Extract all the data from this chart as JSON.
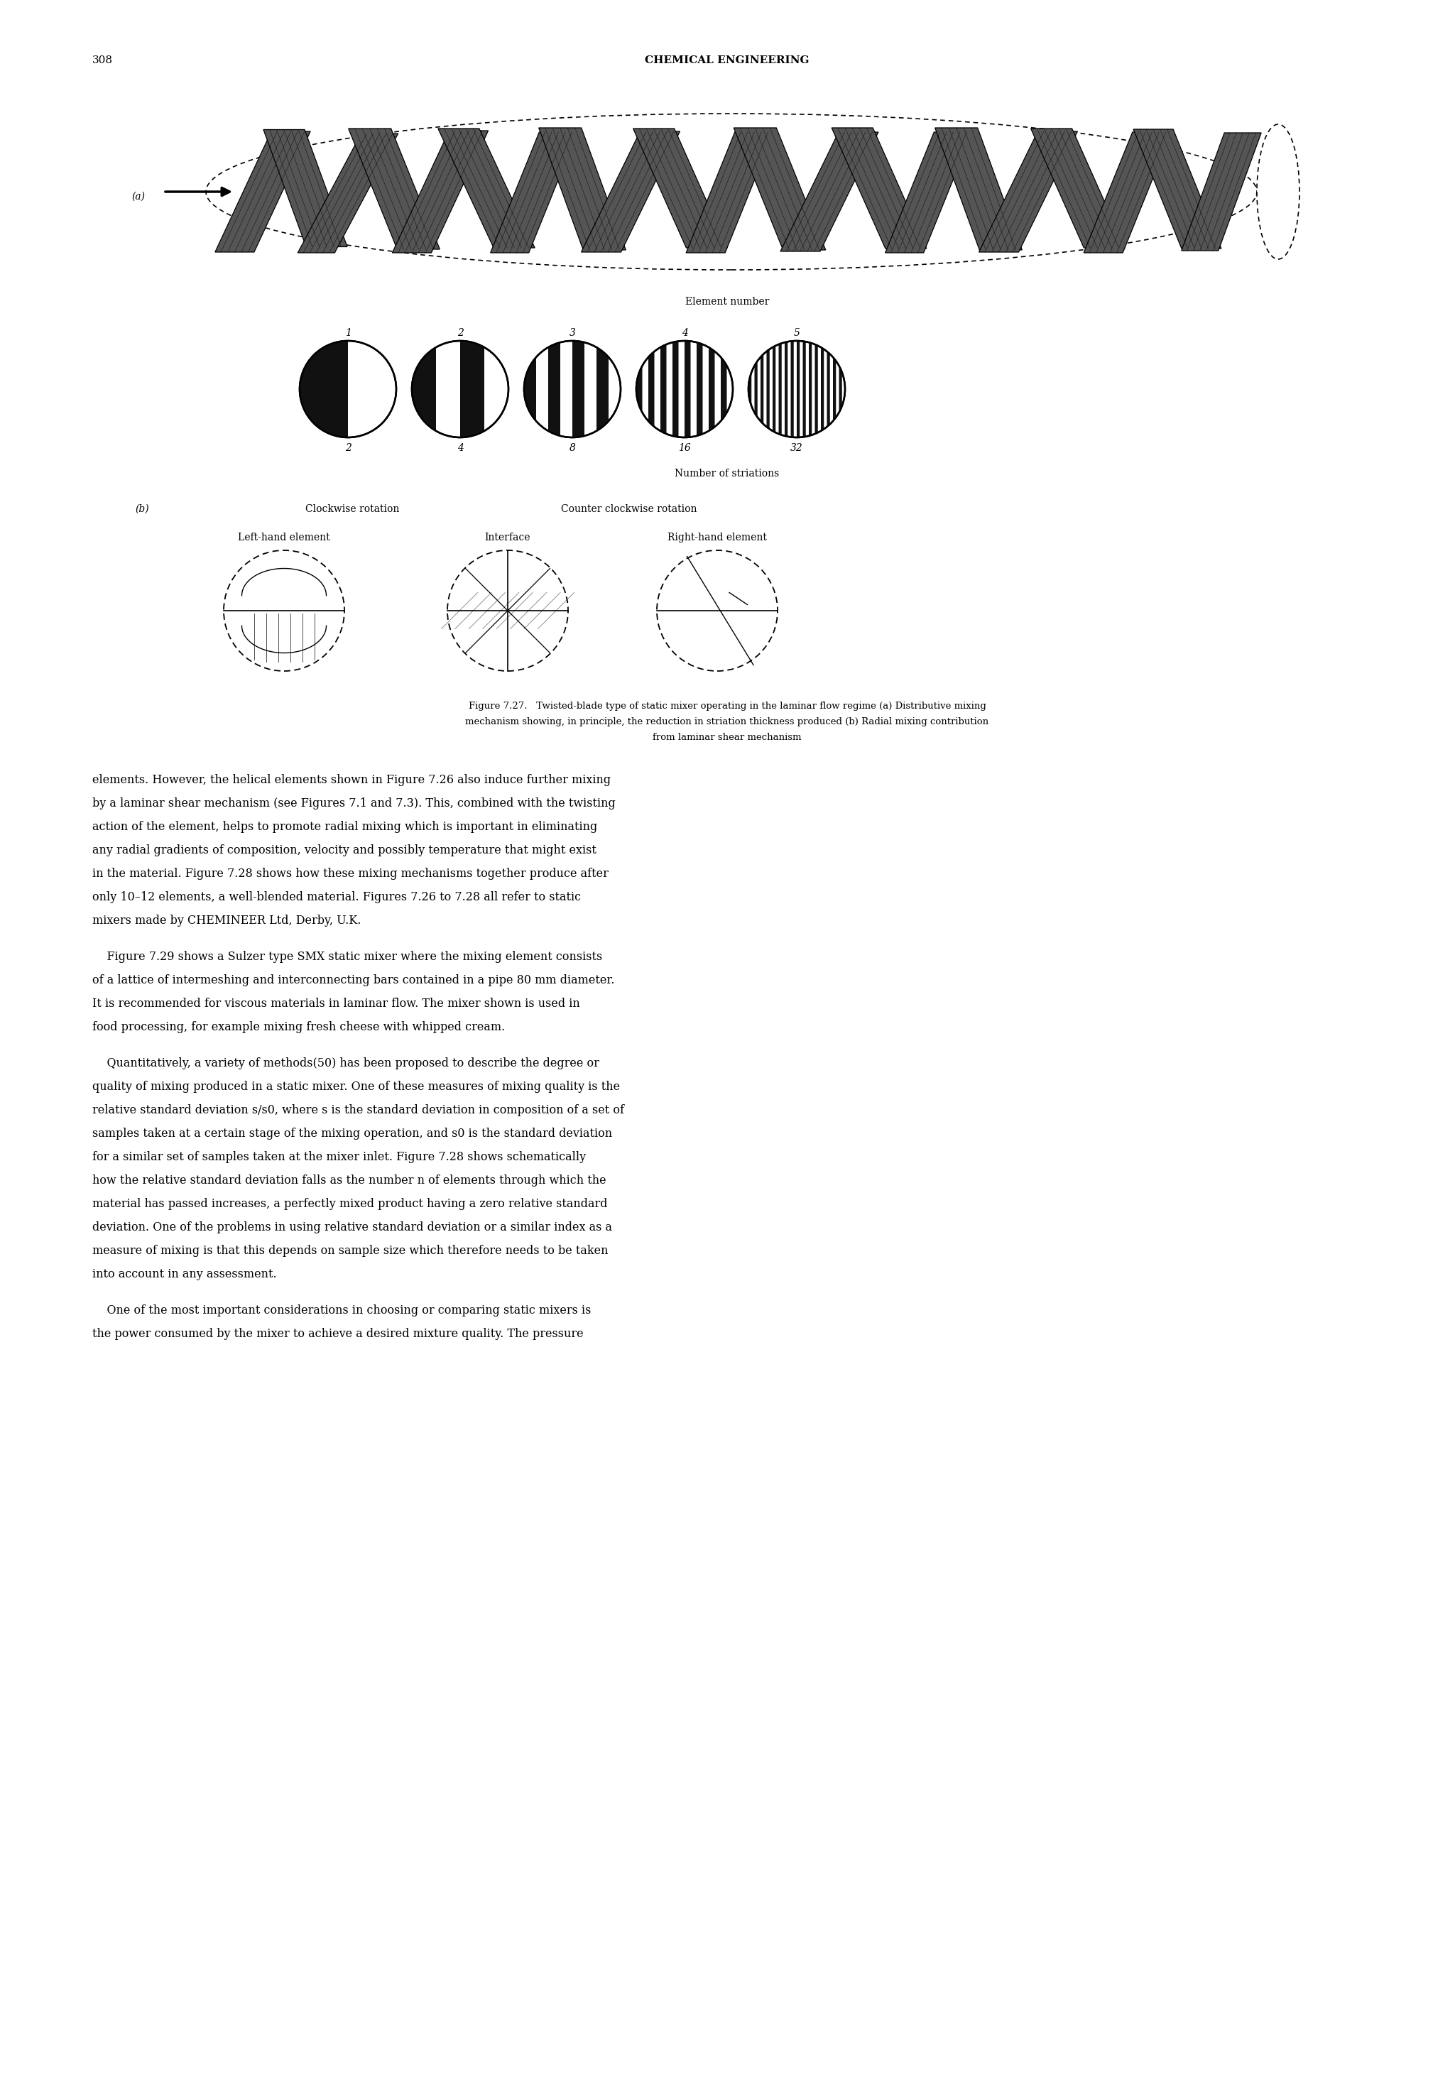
{
  "page_number": "308",
  "header_title": "CHEMICAL ENGINEERING",
  "fig_label_a": "(a)",
  "fig_label_b": "(b)",
  "element_number_label": "Element number",
  "element_numbers": [
    "1",
    "2",
    "3",
    "4",
    "5"
  ],
  "striation_numbers": [
    "2",
    "4",
    "8",
    "16",
    "32"
  ],
  "striation_label": "Number of striations",
  "b_labels_top_cw": "Clockwise rotation",
  "b_labels_top_ccw": "Counter clockwise rotation",
  "b_labels_mid": [
    "Left-hand element",
    "Interface",
    "Right-hand element"
  ],
  "caption_line1": "Figure 7.27.   Twisted-blade type of static mixer operating in the laminar flow regime (a) Distributive mixing",
  "caption_line2": "mechanism showing, in principle, the reduction in striation thickness produced (b) Radial mixing contribution",
  "caption_line3": "from laminar shear mechanism",
  "body_para1": [
    "elements. However, the helical elements shown in Figure 7.26 also induce further mixing",
    "by a laminar shear mechanism (see Figures 7.1 and 7.3). This, combined with the twisting",
    "action of the element, helps to promote radial mixing which is important in eliminating",
    "any radial gradients of composition, velocity and possibly temperature that might exist",
    "in the material. Figure 7.28 shows how these mixing mechanisms together produce after",
    "only 10–12 elements, a well-blended material. Figures 7.26 to 7.28 all refer to static",
    "mixers made by CHEMINEER Ltd, Derby, U.K."
  ],
  "body_para2": [
    "    Figure 7.29 shows a Sulzer type SMX static mixer where the mixing element consists",
    "of a lattice of intermeshing and interconnecting bars contained in a pipe 80 mm diameter.",
    "It is recommended for viscous materials in laminar flow. The mixer shown is used in",
    "food processing, for example mixing fresh cheese with whipped cream."
  ],
  "body_para3": [
    "    Quantitatively, a variety of methods(50) has been proposed to describe the degree or",
    "quality of mixing produced in a static mixer. One of these measures of mixing quality is the",
    "relative standard deviation s/s0, where s is the standard deviation in composition of a set of",
    "samples taken at a certain stage of the mixing operation, and s0 is the standard deviation",
    "for a similar set of samples taken at the mixer inlet. Figure 7.28 shows schematically",
    "how the relative standard deviation falls as the number n of elements through which the",
    "material has passed increases, a perfectly mixed product having a zero relative standard",
    "deviation. One of the problems in using relative standard deviation or a similar index as a",
    "measure of mixing is that this depends on sample size which therefore needs to be taken",
    "into account in any assessment."
  ],
  "body_para4": [
    "    One of the most important considerations in choosing or comparing static mixers is",
    "the power consumed by the mixer to achieve a desired mixture quality. The pressure"
  ],
  "background_color": "#ffffff",
  "text_color": "#000000"
}
